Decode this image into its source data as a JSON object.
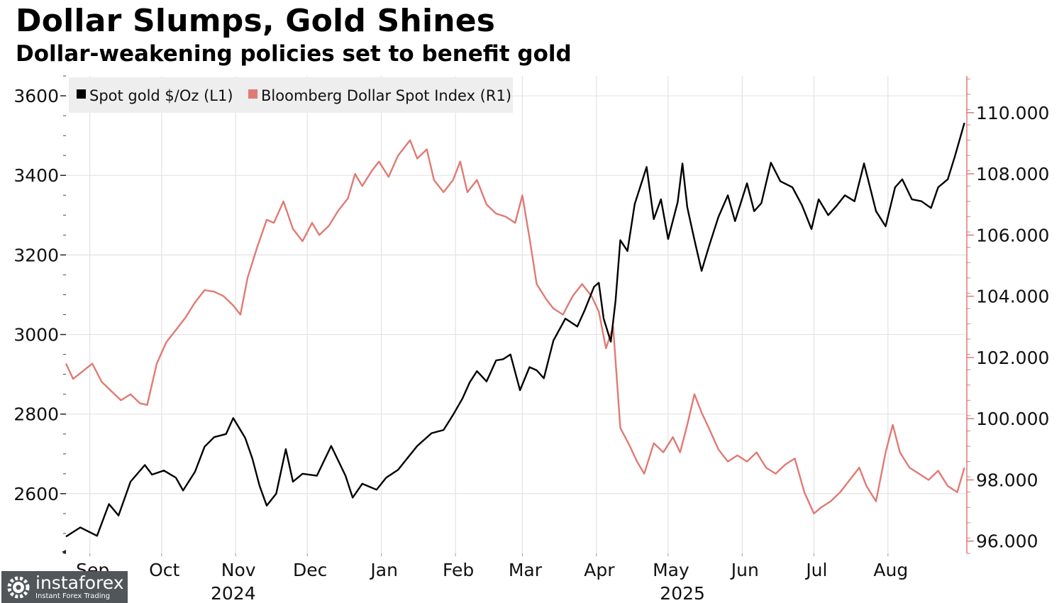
{
  "header": {
    "title": "Dollar Slumps, Gold Shines",
    "subtitle": "Dollar-weakening policies set to benefit gold"
  },
  "watermark": {
    "name": "instaforex",
    "tagline": "Instant Forex Trading"
  },
  "chart_data": {
    "type": "line",
    "grid": true,
    "legend_position": "top-left",
    "x_range": [
      "2024-08-22",
      "2025-09-03"
    ],
    "x_ticks": [
      {
        "label": "Sep",
        "date": "2024-09-01"
      },
      {
        "label": "Oct",
        "date": "2024-10-01"
      },
      {
        "label": "Nov",
        "date": "2024-11-01"
      },
      {
        "label": "Dec",
        "date": "2024-12-01"
      },
      {
        "label": "Jan",
        "date": "2025-01-01"
      },
      {
        "label": "Feb",
        "date": "2025-02-01"
      },
      {
        "label": "Mar",
        "date": "2025-03-01"
      },
      {
        "label": "Apr",
        "date": "2025-04-01"
      },
      {
        "label": "May",
        "date": "2025-05-01"
      },
      {
        "label": "Jun",
        "date": "2025-06-01"
      },
      {
        "label": "Jul",
        "date": "2025-07-01"
      },
      {
        "label": "Aug",
        "date": "2025-08-01"
      }
    ],
    "year_labels": [
      {
        "label": "2024",
        "date": "2024-10-31"
      },
      {
        "label": "2025",
        "date": "2025-05-07"
      }
    ],
    "y_left": {
      "range": [
        2450,
        3650
      ],
      "ticks": [
        2600,
        2800,
        3000,
        3200,
        3400,
        3600
      ],
      "tick_labels": [
        "2600",
        "2800",
        "3000",
        "3200",
        "3400",
        "3600"
      ]
    },
    "y_right": {
      "range": [
        95.6,
        111.2
      ],
      "ticks": [
        96,
        98,
        100,
        102,
        104,
        106,
        108,
        110
      ],
      "tick_labels": [
        "96.000",
        "98.000",
        "100.000",
        "102.000",
        "104.000",
        "106.000",
        "108.000",
        "110.000"
      ]
    },
    "series": [
      {
        "name": "Spot gold $/Oz (L1)",
        "axis": "left",
        "color": "#000000",
        "points": [
          [
            "2024-08-22",
            2492
          ],
          [
            "2024-08-28",
            2515
          ],
          [
            "2024-09-04",
            2494
          ],
          [
            "2024-09-09",
            2574
          ],
          [
            "2024-09-13",
            2545
          ],
          [
            "2024-09-18",
            2630
          ],
          [
            "2024-09-24",
            2672
          ],
          [
            "2024-09-27",
            2648
          ],
          [
            "2024-10-02",
            2658
          ],
          [
            "2024-10-07",
            2640
          ],
          [
            "2024-10-10",
            2608
          ],
          [
            "2024-10-15",
            2655
          ],
          [
            "2024-10-19",
            2718
          ],
          [
            "2024-10-23",
            2742
          ],
          [
            "2024-10-28",
            2750
          ],
          [
            "2024-10-31",
            2790
          ],
          [
            "2024-11-05",
            2740
          ],
          [
            "2024-11-08",
            2688
          ],
          [
            "2024-11-11",
            2620
          ],
          [
            "2024-11-14",
            2570
          ],
          [
            "2024-11-18",
            2600
          ],
          [
            "2024-11-22",
            2712
          ],
          [
            "2024-11-25",
            2630
          ],
          [
            "2024-11-29",
            2650
          ],
          [
            "2024-12-05",
            2645
          ],
          [
            "2024-12-11",
            2720
          ],
          [
            "2024-12-17",
            2645
          ],
          [
            "2024-12-20",
            2590
          ],
          [
            "2024-12-24",
            2625
          ],
          [
            "2024-12-30",
            2610
          ],
          [
            "2025-01-03",
            2640
          ],
          [
            "2025-01-08",
            2660
          ],
          [
            "2025-01-12",
            2690
          ],
          [
            "2025-01-16",
            2720
          ],
          [
            "2025-01-22",
            2752
          ],
          [
            "2025-01-27",
            2760
          ],
          [
            "2025-01-31",
            2798
          ],
          [
            "2025-02-04",
            2840
          ],
          [
            "2025-02-07",
            2880
          ],
          [
            "2025-02-10",
            2908
          ],
          [
            "2025-02-14",
            2882
          ],
          [
            "2025-02-18",
            2935
          ],
          [
            "2025-02-21",
            2938
          ],
          [
            "2025-02-24",
            2950
          ],
          [
            "2025-02-28",
            2860
          ],
          [
            "2025-03-04",
            2918
          ],
          [
            "2025-03-07",
            2910
          ],
          [
            "2025-03-10",
            2890
          ],
          [
            "2025-03-14",
            2985
          ],
          [
            "2025-03-19",
            3040
          ],
          [
            "2025-03-24",
            3020
          ],
          [
            "2025-03-27",
            3060
          ],
          [
            "2025-03-31",
            3120
          ],
          [
            "2025-04-02",
            3130
          ],
          [
            "2025-04-04",
            3040
          ],
          [
            "2025-04-07",
            2982
          ],
          [
            "2025-04-09",
            3085
          ],
          [
            "2025-04-11",
            3237
          ],
          [
            "2025-04-14",
            3210
          ],
          [
            "2025-04-17",
            3328
          ],
          [
            "2025-04-22",
            3421
          ],
          [
            "2025-04-25",
            3290
          ],
          [
            "2025-04-28",
            3340
          ],
          [
            "2025-05-01",
            3240
          ],
          [
            "2025-05-05",
            3333
          ],
          [
            "2025-05-07",
            3430
          ],
          [
            "2025-05-09",
            3320
          ],
          [
            "2025-05-12",
            3238
          ],
          [
            "2025-05-15",
            3160
          ],
          [
            "2025-05-18",
            3220
          ],
          [
            "2025-05-22",
            3295
          ],
          [
            "2025-05-26",
            3350
          ],
          [
            "2025-05-29",
            3285
          ],
          [
            "2025-06-03",
            3380
          ],
          [
            "2025-06-06",
            3310
          ],
          [
            "2025-06-09",
            3330
          ],
          [
            "2025-06-13",
            3432
          ],
          [
            "2025-06-17",
            3385
          ],
          [
            "2025-06-22",
            3370
          ],
          [
            "2025-06-26",
            3325
          ],
          [
            "2025-06-30",
            3265
          ],
          [
            "2025-07-03",
            3340
          ],
          [
            "2025-07-07",
            3300
          ],
          [
            "2025-07-10",
            3320
          ],
          [
            "2025-07-14",
            3350
          ],
          [
            "2025-07-18",
            3335
          ],
          [
            "2025-07-22",
            3430
          ],
          [
            "2025-07-27",
            3310
          ],
          [
            "2025-07-31",
            3272
          ],
          [
            "2025-08-04",
            3370
          ],
          [
            "2025-08-07",
            3390
          ],
          [
            "2025-08-11",
            3340
          ],
          [
            "2025-08-15",
            3335
          ],
          [
            "2025-08-19",
            3318
          ],
          [
            "2025-08-22",
            3370
          ],
          [
            "2025-08-26",
            3390
          ],
          [
            "2025-08-29",
            3448
          ],
          [
            "2025-09-02",
            3532
          ]
        ]
      },
      {
        "name": "Bloomberg Dollar Spot Index (R1)",
        "axis": "right",
        "color": "#e07a74",
        "points": [
          [
            "2024-08-22",
            101.8
          ],
          [
            "2024-08-25",
            101.3
          ],
          [
            "2024-08-29",
            101.55
          ],
          [
            "2024-09-02",
            101.8
          ],
          [
            "2024-09-06",
            101.2
          ],
          [
            "2024-09-10",
            100.9
          ],
          [
            "2024-09-14",
            100.6
          ],
          [
            "2024-09-18",
            100.8
          ],
          [
            "2024-09-22",
            100.5
          ],
          [
            "2024-09-25",
            100.45
          ],
          [
            "2024-09-29",
            101.8
          ],
          [
            "2024-10-03",
            102.5
          ],
          [
            "2024-10-07",
            102.9
          ],
          [
            "2024-10-11",
            103.3
          ],
          [
            "2024-10-15",
            103.8
          ],
          [
            "2024-10-19",
            104.2
          ],
          [
            "2024-10-23",
            104.15
          ],
          [
            "2024-10-27",
            104.0
          ],
          [
            "2024-10-31",
            103.7
          ],
          [
            "2024-11-03",
            103.4
          ],
          [
            "2024-11-06",
            104.6
          ],
          [
            "2024-11-10",
            105.6
          ],
          [
            "2024-11-14",
            106.5
          ],
          [
            "2024-11-17",
            106.4
          ],
          [
            "2024-11-21",
            107.1
          ],
          [
            "2024-11-25",
            106.2
          ],
          [
            "2024-11-29",
            105.8
          ],
          [
            "2024-12-03",
            106.4
          ],
          [
            "2024-12-06",
            106.0
          ],
          [
            "2024-12-10",
            106.3
          ],
          [
            "2024-12-14",
            106.8
          ],
          [
            "2024-12-18",
            107.2
          ],
          [
            "2024-12-21",
            108.0
          ],
          [
            "2024-12-24",
            107.6
          ],
          [
            "2024-12-28",
            108.1
          ],
          [
            "2024-12-31",
            108.4
          ],
          [
            "2025-01-04",
            107.9
          ],
          [
            "2025-01-08",
            108.6
          ],
          [
            "2025-01-13",
            109.1
          ],
          [
            "2025-01-16",
            108.5
          ],
          [
            "2025-01-20",
            108.8
          ],
          [
            "2025-01-23",
            107.8
          ],
          [
            "2025-01-27",
            107.4
          ],
          [
            "2025-01-31",
            107.8
          ],
          [
            "2025-02-03",
            108.4
          ],
          [
            "2025-02-06",
            107.4
          ],
          [
            "2025-02-10",
            107.8
          ],
          [
            "2025-02-14",
            107.0
          ],
          [
            "2025-02-18",
            106.7
          ],
          [
            "2025-02-22",
            106.6
          ],
          [
            "2025-02-26",
            106.4
          ],
          [
            "2025-03-01",
            107.3
          ],
          [
            "2025-03-04",
            105.9
          ],
          [
            "2025-03-07",
            104.4
          ],
          [
            "2025-03-11",
            103.9
          ],
          [
            "2025-03-14",
            103.6
          ],
          [
            "2025-03-18",
            103.4
          ],
          [
            "2025-03-22",
            104.0
          ],
          [
            "2025-03-26",
            104.4
          ],
          [
            "2025-03-30",
            104.0
          ],
          [
            "2025-04-02",
            103.5
          ],
          [
            "2025-04-05",
            102.3
          ],
          [
            "2025-04-08",
            103.0
          ],
          [
            "2025-04-11",
            99.7
          ],
          [
            "2025-04-15",
            99.1
          ],
          [
            "2025-04-18",
            98.6
          ],
          [
            "2025-04-21",
            98.2
          ],
          [
            "2025-04-25",
            99.2
          ],
          [
            "2025-04-29",
            98.9
          ],
          [
            "2025-05-03",
            99.4
          ],
          [
            "2025-05-06",
            98.9
          ],
          [
            "2025-05-09",
            99.8
          ],
          [
            "2025-05-12",
            100.8
          ],
          [
            "2025-05-15",
            100.2
          ],
          [
            "2025-05-18",
            99.7
          ],
          [
            "2025-05-22",
            99.0
          ],
          [
            "2025-05-26",
            98.6
          ],
          [
            "2025-05-30",
            98.8
          ],
          [
            "2025-06-03",
            98.6
          ],
          [
            "2025-06-07",
            98.9
          ],
          [
            "2025-06-11",
            98.4
          ],
          [
            "2025-06-15",
            98.2
          ],
          [
            "2025-06-19",
            98.5
          ],
          [
            "2025-06-23",
            98.7
          ],
          [
            "2025-06-27",
            97.6
          ],
          [
            "2025-07-01",
            96.9
          ],
          [
            "2025-07-04",
            97.1
          ],
          [
            "2025-07-08",
            97.3
          ],
          [
            "2025-07-12",
            97.6
          ],
          [
            "2025-07-16",
            98.0
          ],
          [
            "2025-07-20",
            98.4
          ],
          [
            "2025-07-23",
            97.8
          ],
          [
            "2025-07-27",
            97.3
          ],
          [
            "2025-07-31",
            98.9
          ],
          [
            "2025-08-03",
            99.8
          ],
          [
            "2025-08-06",
            98.9
          ],
          [
            "2025-08-10",
            98.4
          ],
          [
            "2025-08-14",
            98.2
          ],
          [
            "2025-08-18",
            98.0
          ],
          [
            "2025-08-22",
            98.3
          ],
          [
            "2025-08-26",
            97.8
          ],
          [
            "2025-08-30",
            97.6
          ],
          [
            "2025-09-02",
            98.4
          ]
        ]
      }
    ]
  }
}
